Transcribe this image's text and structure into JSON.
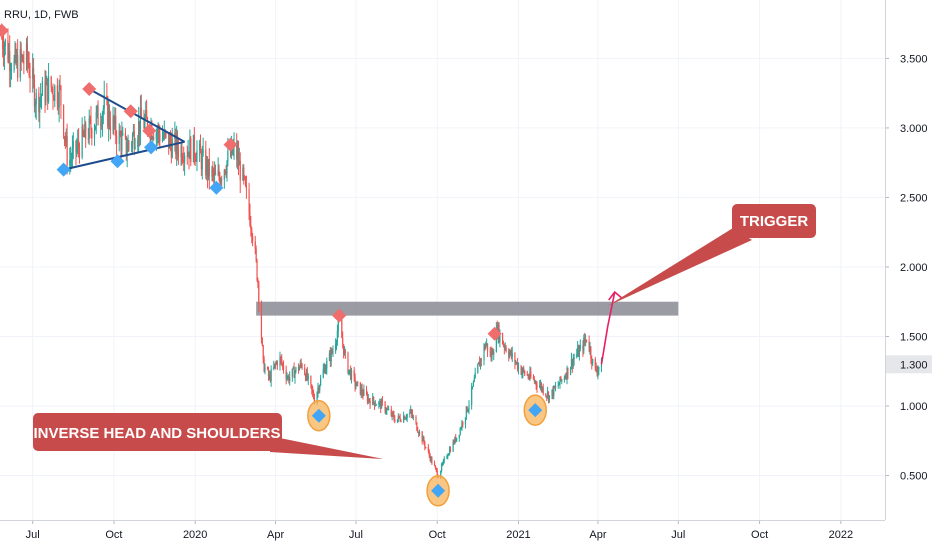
{
  "header": {
    "symbol_line": "RRU, 1D, FWB"
  },
  "colors": {
    "up": "#26a69a",
    "down": "#ef5350",
    "peak_marker": "#f06d6d",
    "trough_marker": "#42a5f5",
    "highlight_circle": "#f7b35b",
    "zone": "#8a8a93",
    "callout": "#c84b4b",
    "trend_line": "#1e4c8c",
    "trigger_arrow": "#e91e63",
    "price_badge": "#e6e7ea"
  },
  "annotations": {
    "trigger_label": "TRIGGER",
    "pattern_label": "INVERSE HEAD AND SHOULDERS"
  },
  "chart_data": {
    "type": "candlestick",
    "xlabel": "",
    "ylabel": "",
    "x_ticks": [
      "Jul",
      "Oct",
      "2020",
      "Apr",
      "Jul",
      "Oct",
      "2021",
      "Apr",
      "Jul",
      "Oct",
      "2022"
    ],
    "x_tick_dates": [
      "2019-07-01",
      "2019-10-01",
      "2020-01-01",
      "2020-04-01",
      "2020-07-01",
      "2020-10-01",
      "2021-01-01",
      "2021-04-01",
      "2021-07-01",
      "2021-10-01",
      "2022-01-01"
    ],
    "y_ticks": [
      "0.500",
      "1.000",
      "1.500",
      "2.000",
      "2.500",
      "3.000",
      "3.500"
    ],
    "y_tick_values": [
      0.5,
      1.0,
      1.5,
      2.0,
      2.5,
      3.0,
      3.5
    ],
    "ylim": [
      0.18,
      3.92
    ],
    "xlim": [
      "2019-05-25",
      "2022-02-20"
    ],
    "last_price": 1.3,
    "last_price_label": "1.300",
    "price_path": [
      [
        "2019-05-25",
        3.68
      ],
      [
        "2019-06-10",
        3.45
      ],
      [
        "2019-06-25",
        3.5
      ],
      [
        "2019-07-05",
        3.2
      ],
      [
        "2019-07-20",
        3.3
      ],
      [
        "2019-08-01",
        3.25
      ],
      [
        "2019-08-10",
        2.75
      ],
      [
        "2019-08-25",
        2.9
      ],
      [
        "2019-09-10",
        3.05
      ],
      [
        "2019-09-20",
        3.15
      ],
      [
        "2019-10-05",
        2.95
      ],
      [
        "2019-10-15",
        2.85
      ],
      [
        "2019-11-01",
        3.05
      ],
      [
        "2019-11-15",
        3.0
      ],
      [
        "2019-12-01",
        2.9
      ],
      [
        "2019-12-15",
        2.85
      ],
      [
        "2020-01-01",
        2.85
      ],
      [
        "2020-01-15",
        2.7
      ],
      [
        "2020-01-25",
        2.62
      ],
      [
        "2020-02-05",
        2.75
      ],
      [
        "2020-02-15",
        2.85
      ],
      [
        "2020-02-25",
        2.6
      ],
      [
        "2020-03-05",
        2.3
      ],
      [
        "2020-03-12",
        1.9
      ],
      [
        "2020-03-18",
        1.3
      ],
      [
        "2020-03-25",
        1.2
      ],
      [
        "2020-04-05",
        1.35
      ],
      [
        "2020-04-15",
        1.2
      ],
      [
        "2020-05-01",
        1.3
      ],
      [
        "2020-05-15",
        1.05
      ],
      [
        "2020-05-25",
        1.25
      ],
      [
        "2020-06-05",
        1.4
      ],
      [
        "2020-06-12",
        1.6
      ],
      [
        "2020-06-20",
        1.3
      ],
      [
        "2020-07-01",
        1.15
      ],
      [
        "2020-07-15",
        1.05
      ],
      [
        "2020-08-01",
        1.0
      ],
      [
        "2020-08-15",
        0.9
      ],
      [
        "2020-09-01",
        0.95
      ],
      [
        "2020-09-15",
        0.75
      ],
      [
        "2020-09-25",
        0.6
      ],
      [
        "2020-10-02",
        0.5
      ],
      [
        "2020-10-12",
        0.65
      ],
      [
        "2020-10-25",
        0.8
      ],
      [
        "2020-11-05",
        1.0
      ],
      [
        "2020-11-15",
        1.25
      ],
      [
        "2020-11-25",
        1.45
      ],
      [
        "2020-12-01",
        1.35
      ],
      [
        "2020-12-08",
        1.55
      ],
      [
        "2020-12-15",
        1.45
      ],
      [
        "2020-12-25",
        1.35
      ],
      [
        "2021-01-05",
        1.25
      ],
      [
        "2021-01-15",
        1.2
      ],
      [
        "2021-01-25",
        1.15
      ],
      [
        "2021-02-05",
        1.07
      ],
      [
        "2021-02-15",
        1.15
      ],
      [
        "2021-02-25",
        1.25
      ],
      [
        "2021-03-05",
        1.35
      ],
      [
        "2021-03-12",
        1.4
      ],
      [
        "2021-03-20",
        1.5
      ],
      [
        "2021-03-28",
        1.25
      ],
      [
        "2021-04-05",
        1.3
      ]
    ],
    "peak_markers": [
      [
        "2019-05-27",
        3.7
      ],
      [
        "2019-09-03",
        3.28
      ],
      [
        "2019-10-20",
        3.12
      ],
      [
        "2019-11-10",
        2.98
      ],
      [
        "2020-02-10",
        2.88
      ],
      [
        "2020-06-12",
        1.65
      ],
      [
        "2020-12-05",
        1.52
      ]
    ],
    "trough_markers": [
      [
        "2019-08-05",
        2.7
      ],
      [
        "2019-10-05",
        2.76
      ],
      [
        "2019-11-12",
        2.86
      ],
      [
        "2020-01-25",
        2.57
      ],
      [
        "2020-05-20",
        0.93
      ],
      [
        "2020-10-02",
        0.39
      ],
      [
        "2021-01-20",
        0.97
      ]
    ],
    "highlighted_troughs": [
      [
        "2020-05-20",
        0.93
      ],
      [
        "2020-10-02",
        0.39
      ],
      [
        "2021-01-20",
        0.97
      ]
    ],
    "resistance_zone": {
      "from": "2020-03-10",
      "to": "2021-07-01",
      "ylow": 1.65,
      "yhigh": 1.75
    },
    "triangle_lines": [
      [
        [
          "2019-09-03",
          3.28
        ],
        [
          "2019-12-20",
          2.9
        ]
      ],
      [
        [
          "2019-08-05",
          2.7
        ],
        [
          "2019-12-20",
          2.9
        ]
      ]
    ],
    "trigger_arrow": [
      [
        "2021-04-05",
        1.3
      ],
      [
        "2021-04-12",
        1.57
      ],
      [
        "2021-04-20",
        1.82
      ]
    ]
  }
}
